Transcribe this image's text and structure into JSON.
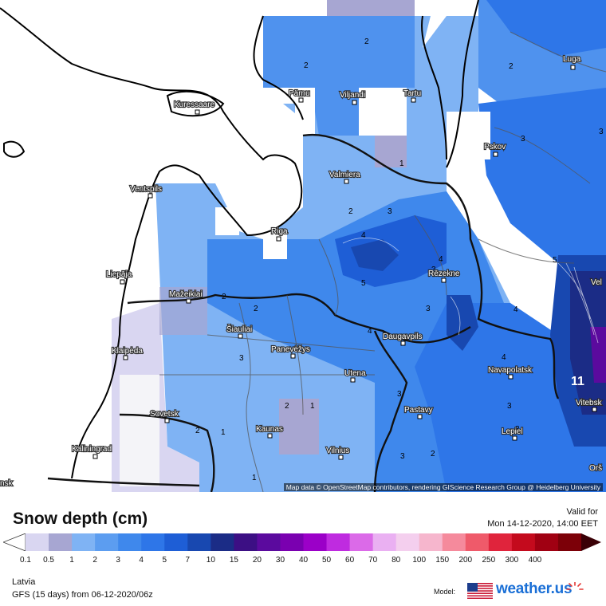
{
  "map": {
    "attribution": "Map data © OpenStreetMap contributors, rendering GIScience Research Group @ Heidelberg University",
    "colors": {
      "water": "#ffffff",
      "no_snow": "#f4f4f8",
      "c0": "#d9d6f1",
      "c1": "#a7a6d2",
      "c2": "#7fb3f4",
      "c3": "#4f92ee",
      "c4": "#2e76e8",
      "c5": "#1e5ed6",
      "c6": "#1848b0",
      "c7": "#1b2c86",
      "c8": "#5b0a9e"
    },
    "cities": [
      {
        "name": "Kuressaare"
      },
      {
        "name": "Pärnu"
      },
      {
        "name": "Viljandi"
      },
      {
        "name": "Tartu"
      },
      {
        "name": "Luga"
      },
      {
        "name": "Pskov"
      },
      {
        "name": "Valmiera"
      },
      {
        "name": "Ventspils"
      },
      {
        "name": "Riga"
      },
      {
        "name": "Liepāja"
      },
      {
        "name": "Mažeikiai"
      },
      {
        "name": "Rēzekne"
      },
      {
        "name": "Šiauliai"
      },
      {
        "name": "Klaipėda"
      },
      {
        "name": "Panevėžys"
      },
      {
        "name": "Daugavpils"
      },
      {
        "name": "Navapolatsk"
      },
      {
        "name": "Utena"
      },
      {
        "name": "Sovetsk"
      },
      {
        "name": "Pastavy"
      },
      {
        "name": "Kaunas"
      },
      {
        "name": "Kaliningrad"
      },
      {
        "name": "Vilnius"
      },
      {
        "name": "Lepiel"
      },
      {
        "name": "Vitebsk"
      },
      {
        "name": "Orš"
      },
      {
        "name": "Vel"
      },
      {
        "name": "nsk"
      }
    ],
    "contour_labels": [
      "2",
      "2",
      "2",
      "1",
      "3",
      "2",
      "3",
      "4",
      "4",
      "3",
      "5",
      "4",
      "3",
      "5",
      "2",
      "3",
      "2",
      "4",
      "4",
      "3",
      "3",
      "1",
      "2",
      "1",
      "3",
      "2",
      "2",
      "3",
      "3",
      "11",
      "1"
    ]
  },
  "legend": {
    "title": "Snow depth (cm)",
    "valid_for_label": "Valid for",
    "valid_time": "Mon 14-12-2020, 14:00 EET",
    "ticks": [
      "0.1",
      "0.5",
      "1",
      "2",
      "3",
      "4",
      "5",
      "7",
      "10",
      "15",
      "20",
      "30",
      "40",
      "50",
      "60",
      "70",
      "80",
      "100",
      "150",
      "200",
      "250",
      "300",
      "400"
    ],
    "colors": [
      "#d9d6f1",
      "#a7a6d2",
      "#7fb3f4",
      "#5c9df0",
      "#3f88ec",
      "#2e76e8",
      "#1e5ed6",
      "#1848b0",
      "#1b2c86",
      "#3c0f84",
      "#5b0a9e",
      "#7a00b0",
      "#9b00c8",
      "#bf2be0",
      "#db6ae8",
      "#eab0f2",
      "#f4cfee",
      "#f6b6cd",
      "#f58a9c",
      "#ef5a6a",
      "#e0243c",
      "#c40a1d",
      "#a00012",
      "#7c0008"
    ]
  },
  "footer": {
    "region": "Latvia",
    "model_run": "GFS (15 days) from  06-12-2020/06z",
    "model_label": "Model:",
    "brand": "weather.us"
  }
}
